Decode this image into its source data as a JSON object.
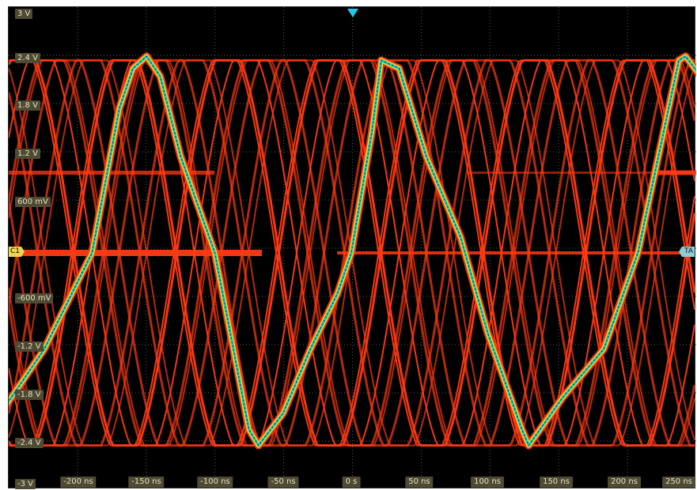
{
  "chart_data": {
    "type": "line",
    "title": "",
    "xlabel": "",
    "ylabel": "",
    "x_ticks": [
      "-200 ns",
      "-150 ns",
      "-100 ns",
      "-50 ns",
      "0 s",
      "50 ns",
      "100 ns",
      "150 ns",
      "200 ns",
      "250 ns"
    ],
    "y_ticks": [
      "3 V",
      "2.4 V",
      "1.8 V",
      "1.2 V",
      "600 mV",
      "-600 mV",
      "-1.2 V",
      "-1.8 V",
      "-2.4 V",
      "-3 V"
    ],
    "xlim_ns": [
      -250,
      265
    ],
    "ylim_v": [
      -3,
      3
    ],
    "grid": true,
    "persistence": true,
    "dominant_trace": {
      "name": "",
      "description_units": "time ns, voltage V",
      "x_ns": [
        -257,
        -225,
        -190,
        -170,
        -160,
        -150,
        -140,
        -125,
        -100,
        -75,
        -68,
        -50,
        -30,
        -10,
        0,
        15,
        22,
        35,
        55,
        80,
        100,
        125,
        130,
        155,
        185,
        210,
        240,
        245,
        265
      ],
      "y_v": [
        -2.0,
        -1.2,
        0.0,
        1.8,
        2.3,
        2.45,
        2.2,
        1.2,
        0.0,
        -2.2,
        -2.4,
        -2.0,
        -1.2,
        -0.5,
        0.0,
        1.5,
        2.4,
        2.3,
        1.2,
        0.2,
        -1.0,
        -2.2,
        -2.4,
        -1.8,
        -1.2,
        0.0,
        2.4,
        2.45,
        2.0
      ]
    },
    "other_traces_color": "#ff3b14",
    "dominant_trace_colors": [
      "#ffd71e",
      "#2ae08a",
      "#1d4ad6"
    ],
    "markers": {
      "channel": "C1",
      "trigger_level": "TA"
    }
  }
}
